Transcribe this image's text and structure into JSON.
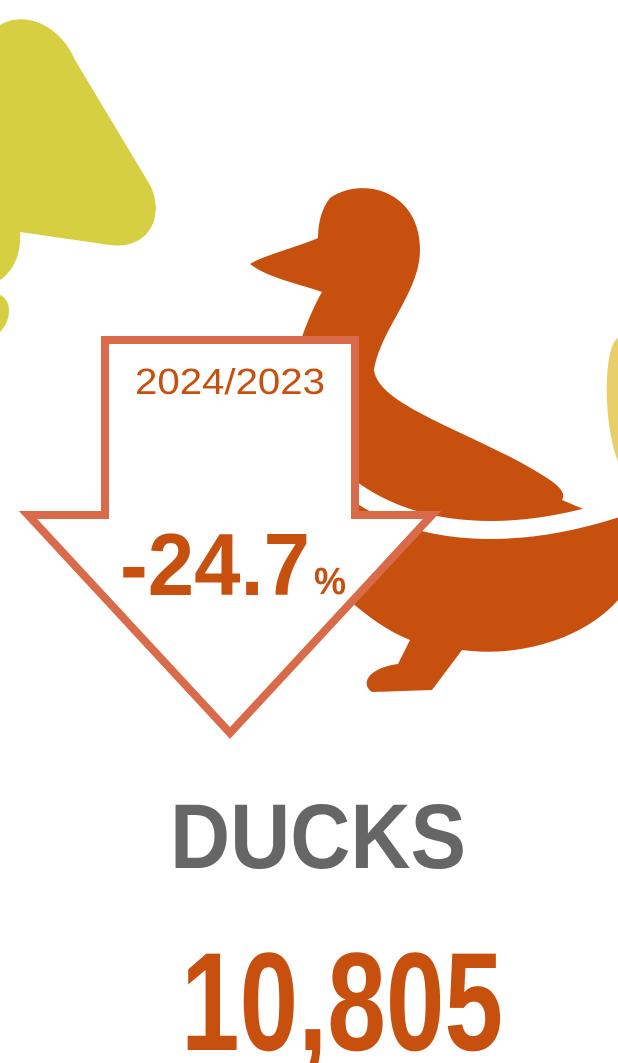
{
  "infographic": {
    "period": "2024/2023",
    "change": -24.7,
    "change_unit": "%",
    "title": "DUCKS",
    "count": "10,805"
  }
}
